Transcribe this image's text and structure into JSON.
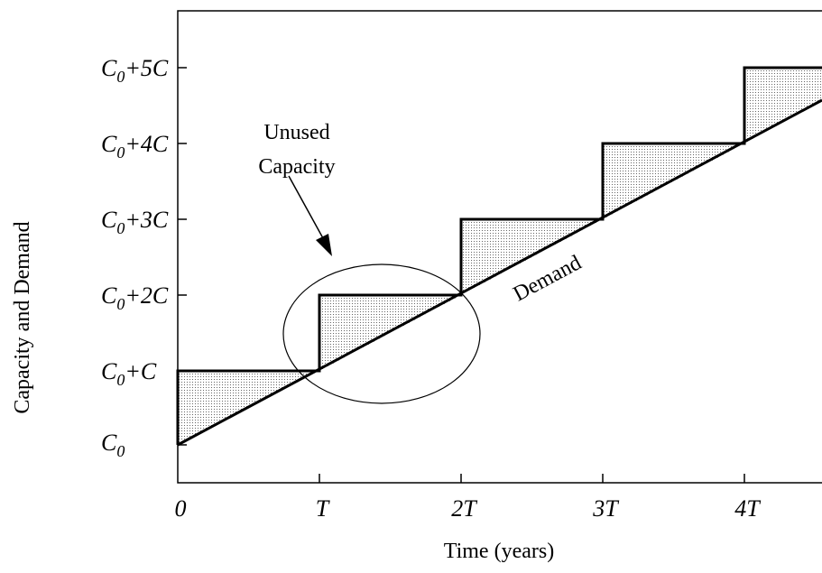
{
  "y_axis_title": "Capacity and Demand",
  "x_axis_title": "Time (years)",
  "y_labels": [
    {
      "main": "C",
      "sub": "0",
      "suffix": "+5C"
    },
    {
      "main": "C",
      "sub": "0",
      "suffix": "+4C"
    },
    {
      "main": "C",
      "sub": "0",
      "suffix": "+3C"
    },
    {
      "main": "C",
      "sub": "0",
      "suffix": "+2C"
    },
    {
      "main": "C",
      "sub": "0",
      "suffix": "+C"
    },
    {
      "main": "C",
      "sub": "0"
    }
  ],
  "x_labels": [
    "0",
    "T",
    "2T",
    "3T",
    "4T"
  ],
  "annotation": {
    "line1": "Unused",
    "line2": "Capacity"
  },
  "demand_label": "Demand"
}
